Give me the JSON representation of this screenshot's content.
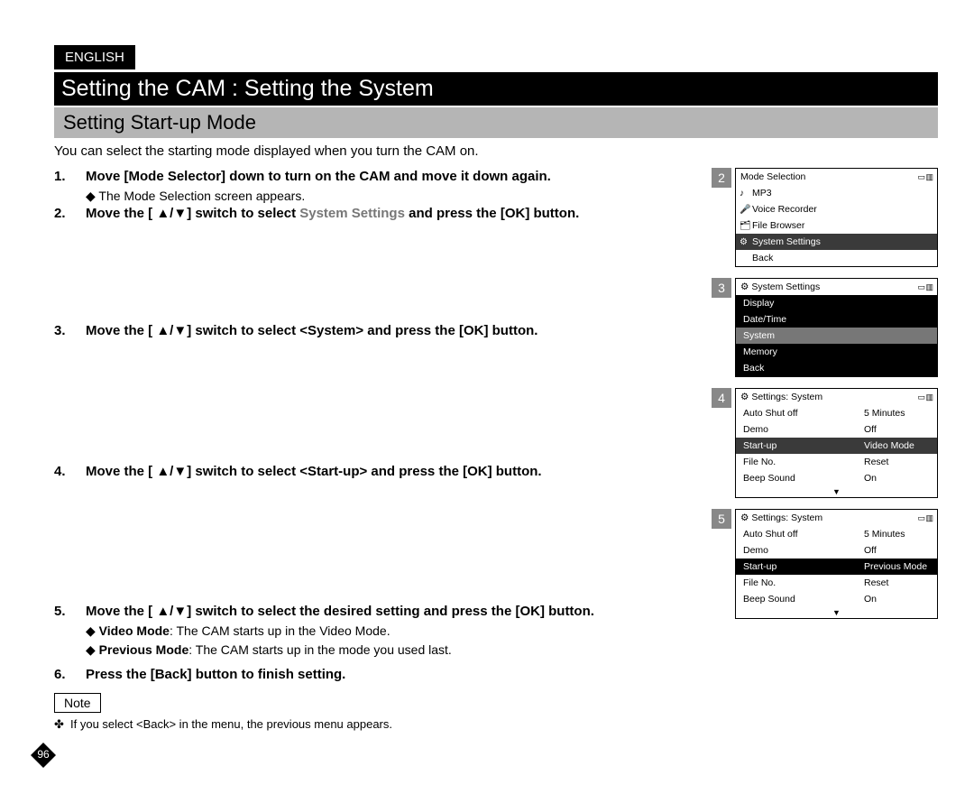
{
  "lang": "ENGLISH",
  "title": "Setting the CAM : Setting the System",
  "subtitle": "Setting Start-up Mode",
  "intro": "You can select the starting mode displayed when you turn the CAM on.",
  "steps": [
    {
      "main": "Move [Mode Selector] down to turn on the CAM and move it down again.",
      "sub": [
        "The Mode Selection screen appears."
      ]
    },
    {
      "main_before": "Move the [ ▲/▼] switch to select ",
      "main_grey": "System Settings",
      "main_after": " and press the [OK] button."
    },
    {
      "main": "Move the [ ▲/▼] switch to select <System> and press the [OK] button."
    },
    {
      "main": "Move the [ ▲/▼] switch to select <Start-up> and press the [OK] button."
    },
    {
      "main": "Move the [ ▲/▼] switch to select the desired setting and press the [OK] button.",
      "sub": [
        "Video Mode: The CAM starts up in the Video Mode.",
        "Previous Mode: The CAM starts up in the mode you used last."
      ],
      "sub_bold_len": [
        10,
        13
      ]
    },
    {
      "main": "Press the [Back] button to finish setting."
    }
  ],
  "note_label": "Note",
  "notes": [
    "If you select <Back> in the menu, the previous menu appears."
  ],
  "page_number": "96",
  "screens": [
    {
      "num": "2",
      "header": "Mode Selection",
      "rows": [
        {
          "icon": "♪",
          "label": "MP3",
          "style": ""
        },
        {
          "icon": "🎤",
          "label": "Voice Recorder",
          "style": ""
        },
        {
          "icon": "🗂",
          "label": "File Browser",
          "style": ""
        },
        {
          "icon": "⚙",
          "label": "System Settings",
          "style": "dark"
        },
        {
          "icon": "",
          "label": "Back",
          "style": ""
        }
      ]
    },
    {
      "num": "3",
      "header": "System Settings",
      "header_icon": "⚙",
      "rows": [
        {
          "label": "Display",
          "style": "black"
        },
        {
          "label": "Date/Time",
          "style": "black"
        },
        {
          "label": "System",
          "style": "sel"
        },
        {
          "label": "Memory",
          "style": "black"
        },
        {
          "label": "Back",
          "style": "black"
        }
      ]
    },
    {
      "num": "4",
      "header": "Settings: System",
      "header_icon": "⚙",
      "rows": [
        {
          "label": "Auto Shut off",
          "val": "5 Minutes",
          "style": ""
        },
        {
          "label": "Demo",
          "val": "Off",
          "style": ""
        },
        {
          "label": "Start-up",
          "val": "Video Mode",
          "style": "dark",
          "valstyle": "boxdark"
        },
        {
          "label": "File No.",
          "val": "Reset",
          "style": ""
        },
        {
          "label": "Beep Sound",
          "val": "On",
          "style": ""
        }
      ],
      "arrow": true
    },
    {
      "num": "5",
      "header": "Settings: System",
      "header_icon": "⚙",
      "rows": [
        {
          "label": "Auto Shut off",
          "val": "5 Minutes",
          "style": ""
        },
        {
          "label": "Demo",
          "val": "Off",
          "style": ""
        },
        {
          "label": "Start-up",
          "val": "Previous Mode",
          "style": "black",
          "valstyle": "boxblack"
        },
        {
          "label": "File No.",
          "val": "Reset",
          "style": ""
        },
        {
          "label": "Beep Sound",
          "val": "On",
          "style": ""
        }
      ],
      "arrow": true
    }
  ]
}
